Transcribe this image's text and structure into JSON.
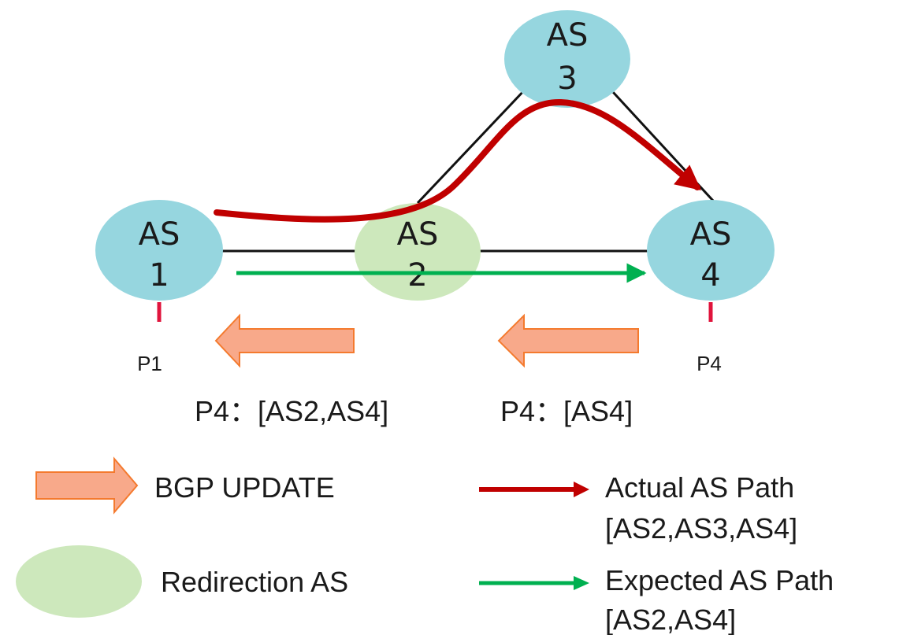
{
  "nodes": {
    "as1": {
      "line1": "AS",
      "line2": "1"
    },
    "as2": {
      "line1": "AS",
      "line2": "2"
    },
    "as3": {
      "line1": "AS",
      "line2": "3"
    },
    "as4": {
      "line1": "AS",
      "line2": "4"
    }
  },
  "prefixes": {
    "p1": "P1",
    "p4": "P4"
  },
  "updates": {
    "left": "P4：[AS2,AS4]",
    "right": "P4：[AS4]"
  },
  "legend": {
    "bgp_update": "BGP UPDATE",
    "redirection_as": "Redirection AS",
    "actual_path_line1": "Actual AS Path",
    "actual_path_line2": "[AS2,AS3,AS4]",
    "expected_path_line1": "Expected AS Path",
    "expected_path_line2": "[AS2,AS4]"
  },
  "colors": {
    "as_node": "#96d6df",
    "redirection_node": "#cde8bc",
    "actual_path": "#c00000",
    "expected_path": "#00b050",
    "update_arrow_fill": "#f8a98a",
    "update_arrow_stroke": "#f47a2e",
    "prefix_marker": "#e0143c"
  }
}
